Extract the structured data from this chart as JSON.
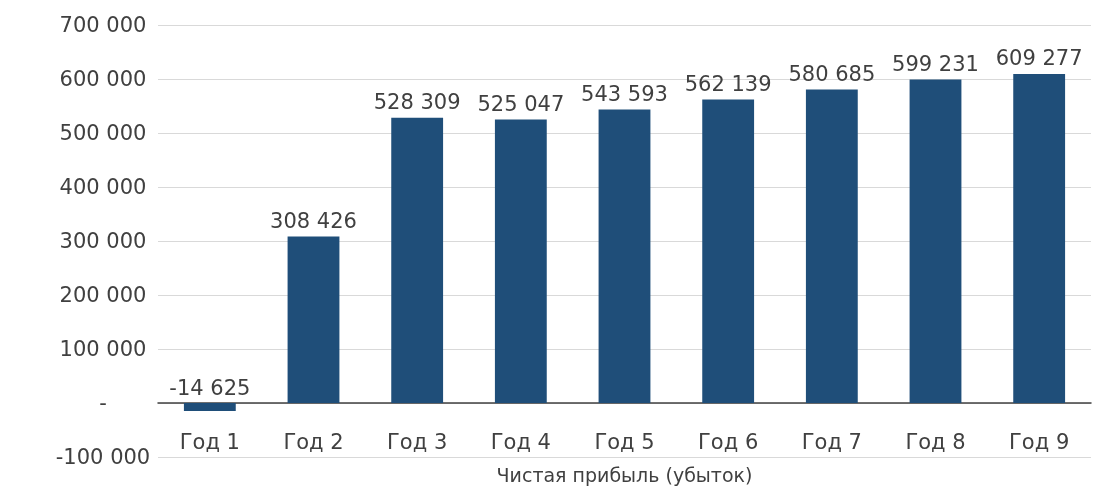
{
  "chart_data": {
    "type": "bar",
    "xlabel": "Чистая прибыль (убыток)",
    "categories": [
      "Год 1",
      "Год 2",
      "Год 3",
      "Год 4",
      "Год 5",
      "Год 6",
      "Год 7",
      "Год 8",
      "Год 9"
    ],
    "values": [
      -14625,
      308426,
      528309,
      525047,
      543593,
      562139,
      580685,
      599231,
      609277
    ],
    "value_labels": [
      "-14 625",
      "308 426",
      "528 309",
      "525 047",
      "543 593",
      "562 139",
      "580 685",
      "599 231",
      "609 277"
    ],
    "color": "#1f4e79",
    "ylim": [
      -100000,
      700000
    ],
    "yticks": [
      {
        "value": -100000,
        "label": "-100 000"
      },
      {
        "value": 0,
        "label": "-"
      },
      {
        "value": 100000,
        "label": "100 000"
      },
      {
        "value": 200000,
        "label": "200 000"
      },
      {
        "value": 300000,
        "label": "300 000"
      },
      {
        "value": 400000,
        "label": "400 000"
      },
      {
        "value": 500000,
        "label": "500 000"
      },
      {
        "value": 600000,
        "label": "600 000"
      },
      {
        "value": 700000,
        "label": "700 000"
      }
    ],
    "grid": "y"
  }
}
